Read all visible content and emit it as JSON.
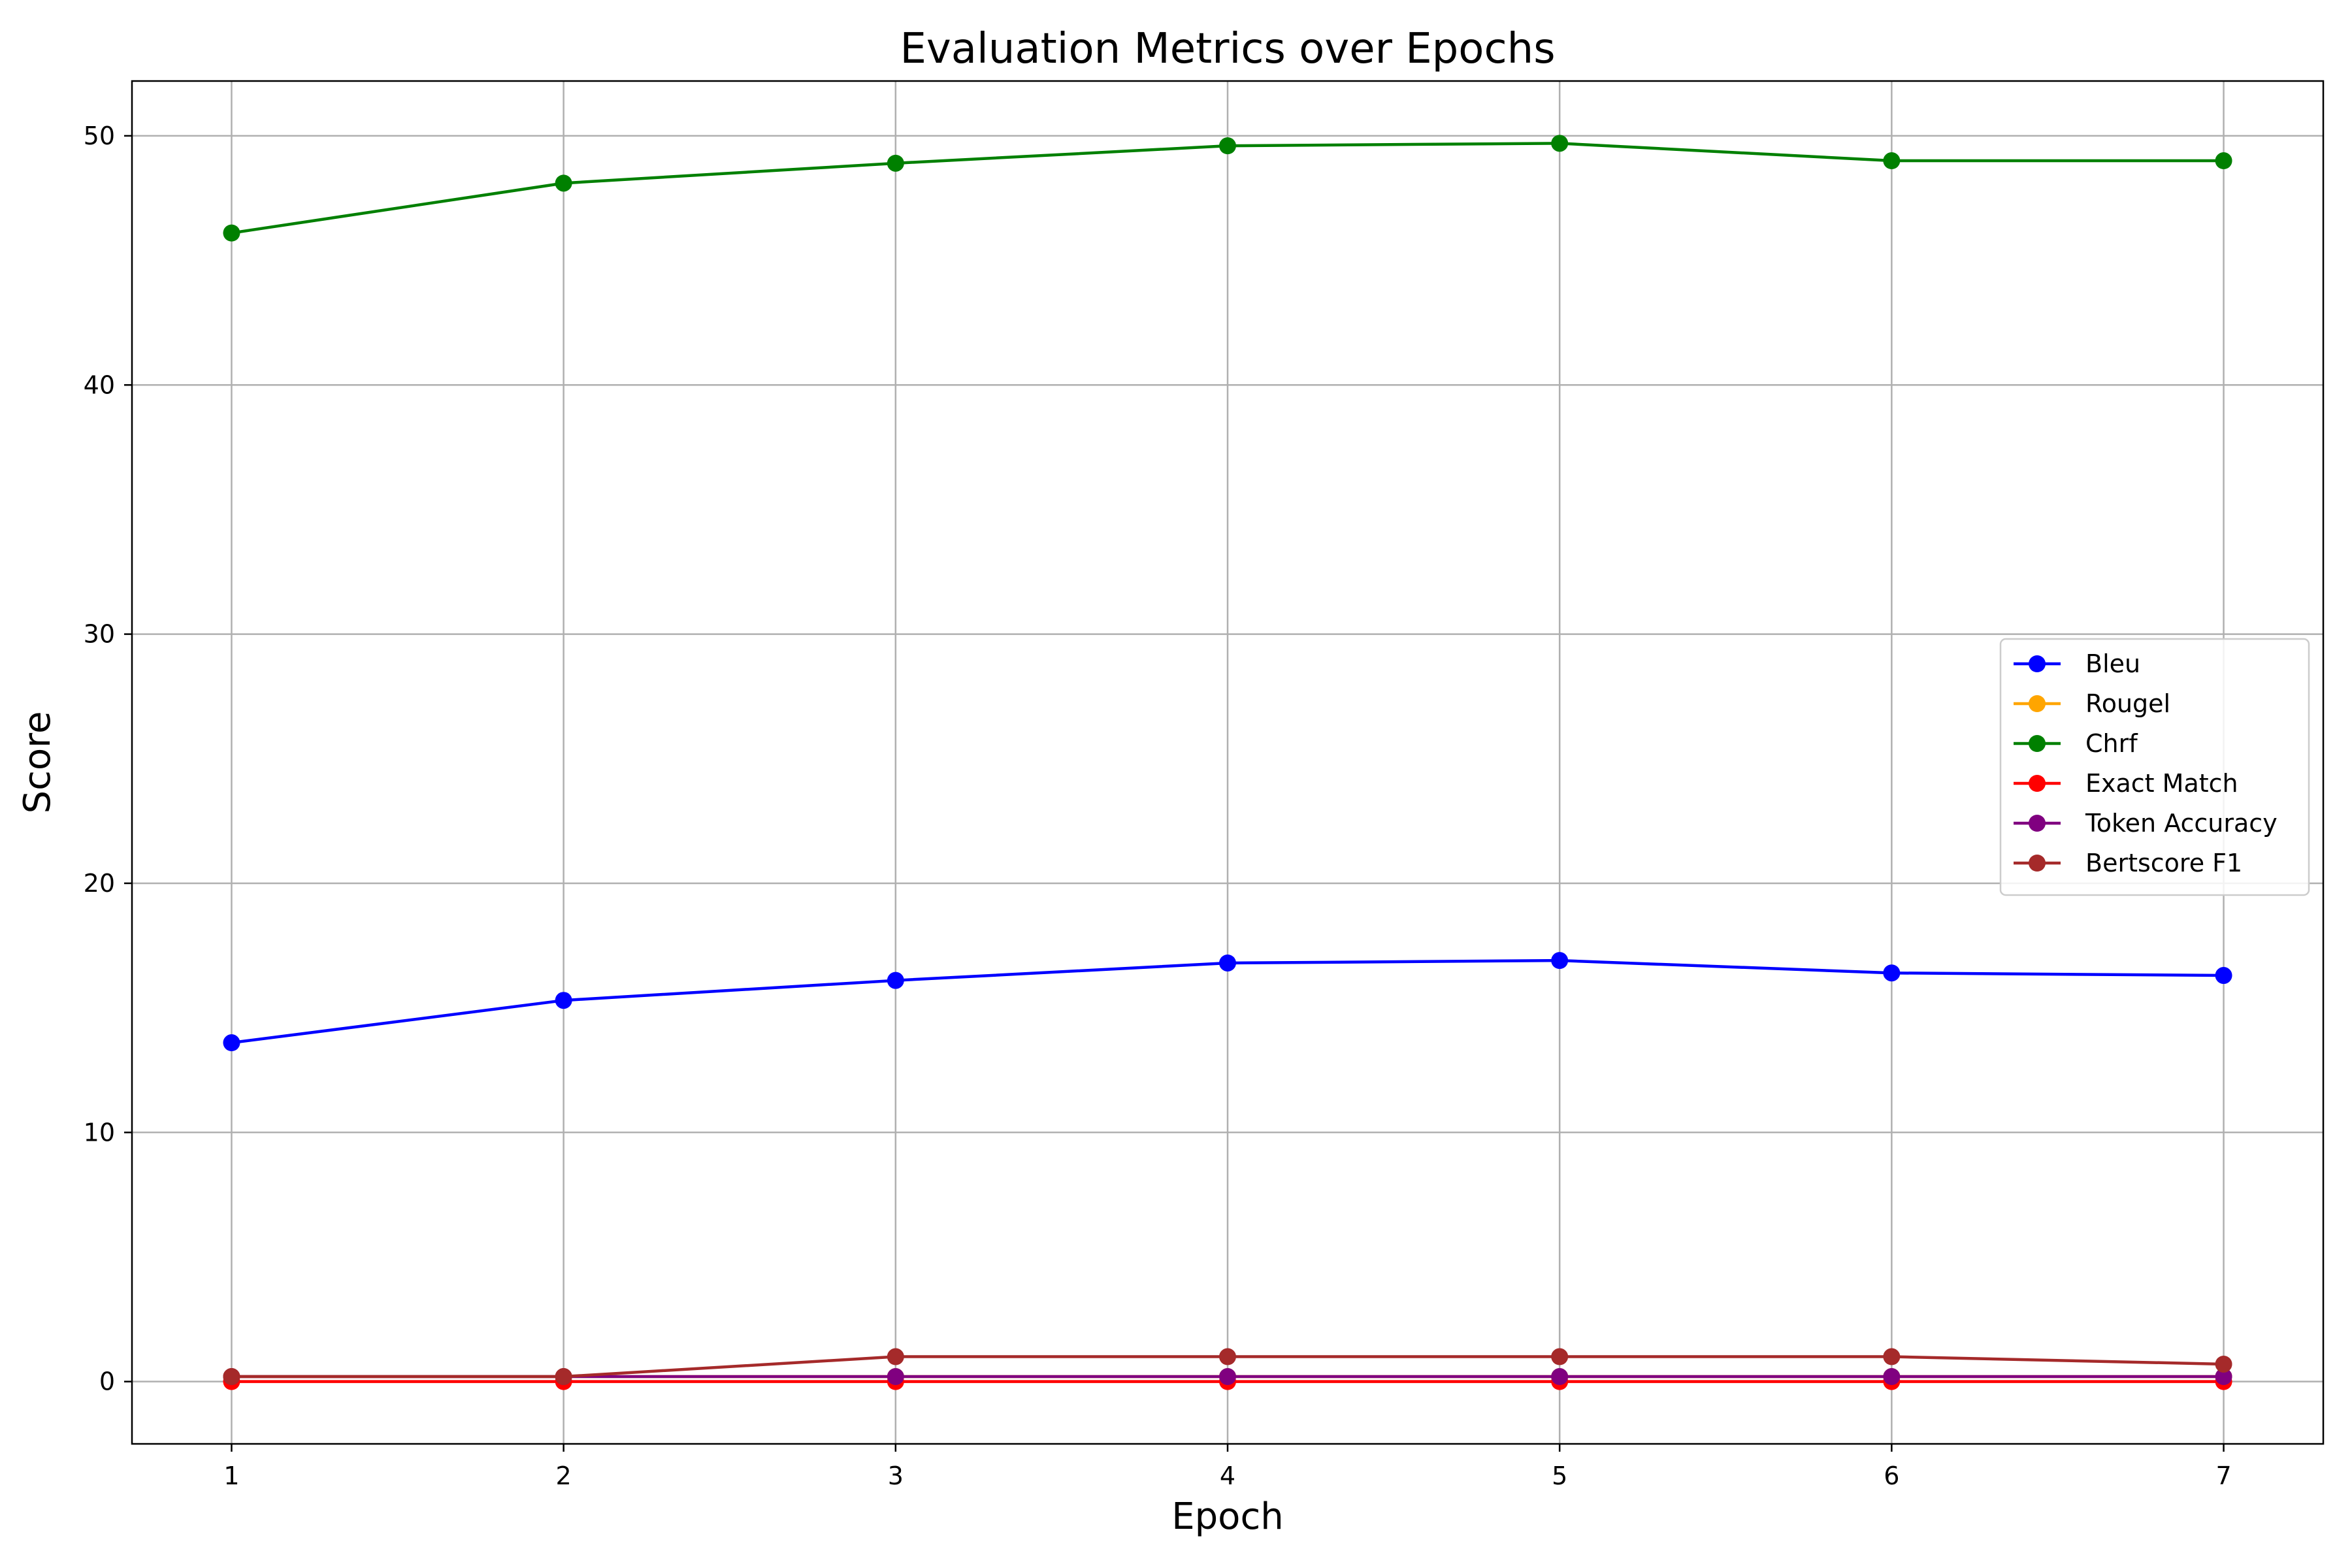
{
  "chart_data": {
    "type": "line",
    "title": "Evaluation Metrics over Epochs",
    "xlabel": "Epoch",
    "ylabel": "Score",
    "x": [
      1,
      2,
      3,
      4,
      5,
      6,
      7
    ],
    "x_ticks": [
      "1",
      "2",
      "3",
      "4",
      "5",
      "6",
      "7"
    ],
    "y_ticks": [
      "0",
      "10",
      "20",
      "30",
      "40",
      "50"
    ],
    "xlim": [
      0.7,
      7.3
    ],
    "ylim": [
      -2.5,
      52.2
    ],
    "grid": true,
    "legend_position": "center-right",
    "series": [
      {
        "name": "Bleu",
        "color": "#0000ff",
        "values": [
          13.6,
          15.3,
          16.1,
          16.8,
          16.9,
          16.4,
          16.3
        ]
      },
      {
        "name": "Rougel",
        "color": "#ffa500",
        "values": [
          0.2,
          0.2,
          0.2,
          0.2,
          0.2,
          0.2,
          0.2
        ]
      },
      {
        "name": "Chrf",
        "color": "#008000",
        "values": [
          46.1,
          48.1,
          48.9,
          49.6,
          49.7,
          49.0,
          49.0
        ]
      },
      {
        "name": "Exact Match",
        "color": "#ff0000",
        "values": [
          0.0,
          0.0,
          0.0,
          0.0,
          0.0,
          0.0,
          0.0
        ]
      },
      {
        "name": "Token Accuracy",
        "color": "#800080",
        "values": [
          0.2,
          0.2,
          0.2,
          0.2,
          0.2,
          0.2,
          0.2
        ]
      },
      {
        "name": "Bertscore F1",
        "color": "#a52a2a",
        "values": [
          0.2,
          0.2,
          1.0,
          1.0,
          1.0,
          1.0,
          0.7
        ]
      }
    ]
  }
}
